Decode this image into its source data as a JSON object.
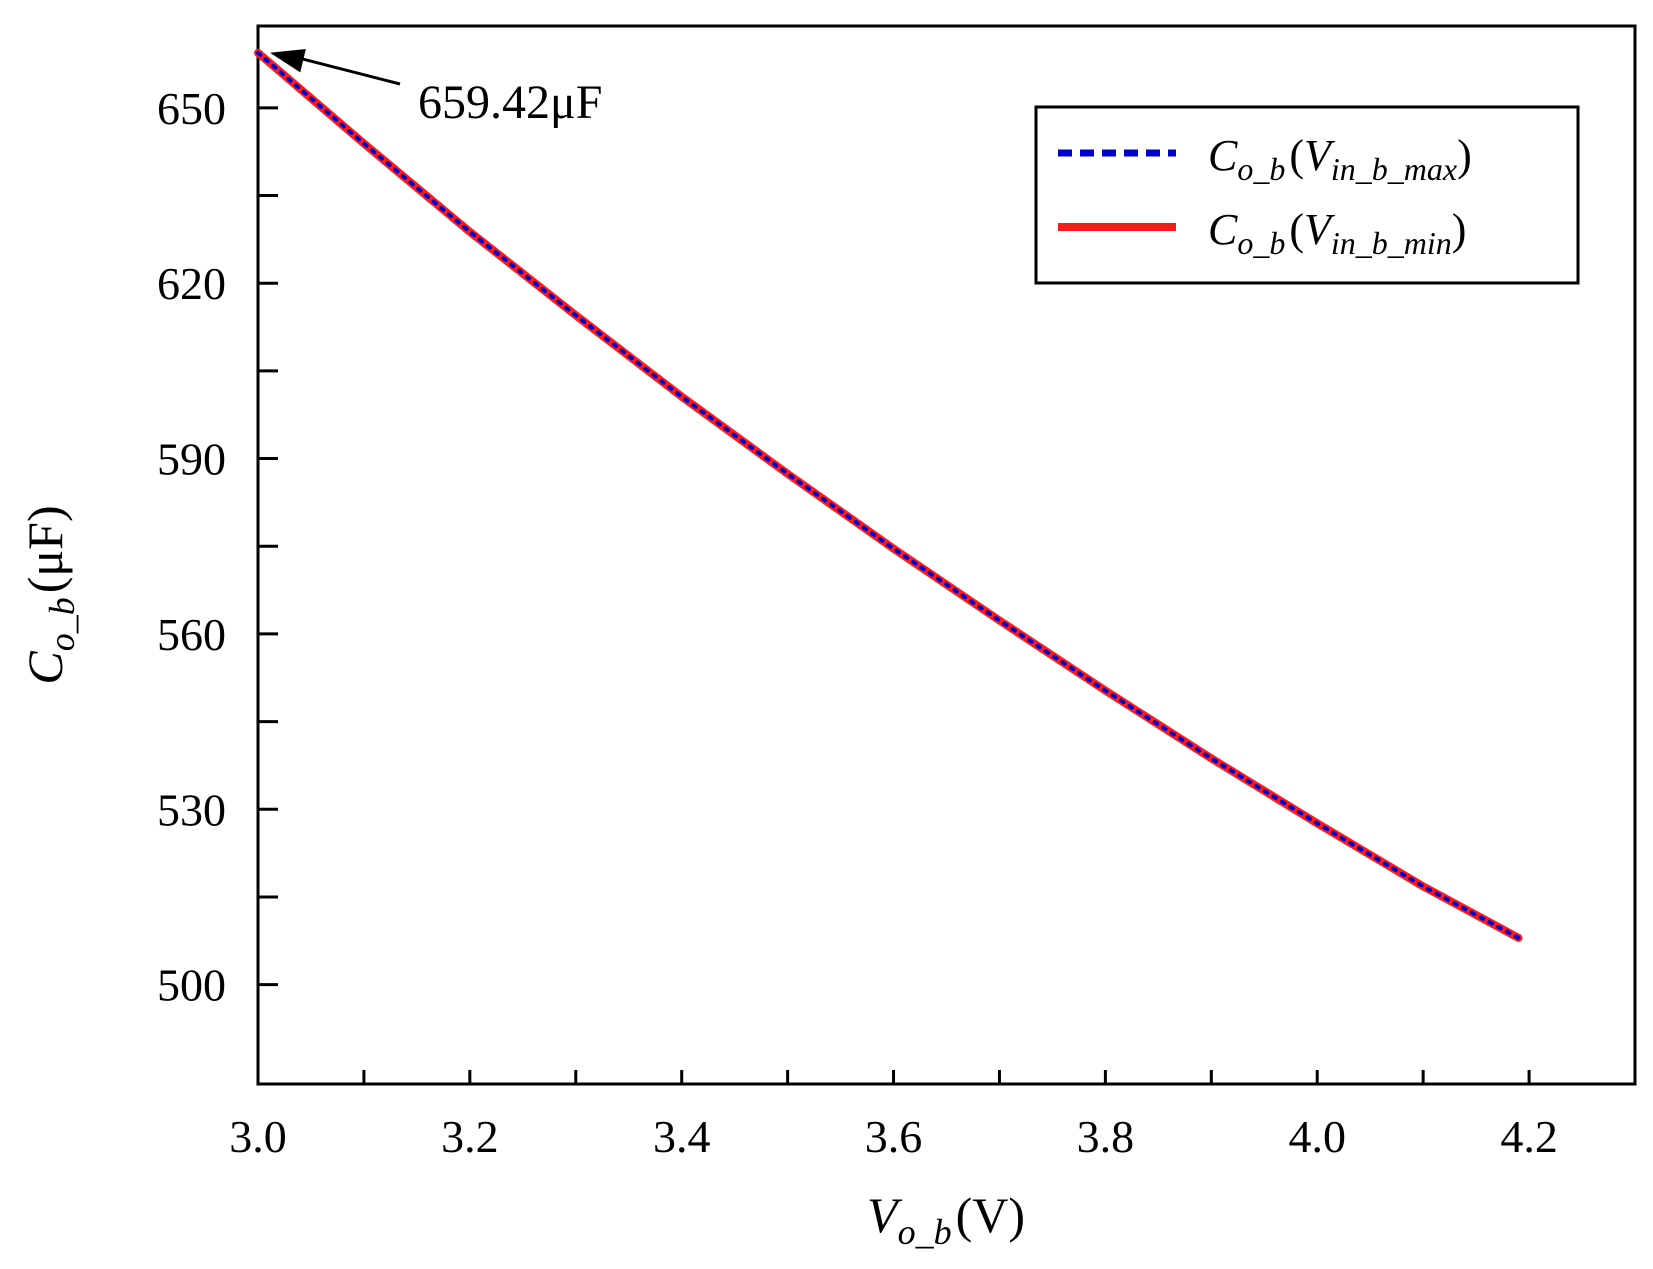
{
  "chart_data": {
    "type": "line",
    "title": "",
    "x_axis": {
      "label_main": "V",
      "label_sub": "o_b",
      "label_unit": "(V)",
      "range": [
        3.0,
        4.3
      ],
      "ticks": [
        3.0,
        3.2,
        3.4,
        3.6,
        3.8,
        4.0,
        4.2
      ],
      "tick_labels": [
        "3.0",
        "3.2",
        "3.4",
        "3.6",
        "3.8",
        "4.0",
        "4.2"
      ]
    },
    "y_axis": {
      "label_main": "C",
      "label_sub": "o_b",
      "label_unit": "(μF)",
      "range": [
        483,
        664
      ],
      "ticks": [
        500,
        530,
        560,
        590,
        620,
        650
      ],
      "tick_labels": [
        "500",
        "530",
        "560",
        "590",
        "620",
        "650"
      ]
    },
    "grid": false,
    "legend": {
      "position": "top-right"
    },
    "series": [
      {
        "name_main": "C",
        "name_sub": "o_b",
        "name_arg_main": "V",
        "name_arg_sub": "in_b_max",
        "color": "#0000cc",
        "style": "dotted",
        "x": [
          3.0,
          3.1,
          3.2,
          3.3,
          3.4,
          3.5,
          3.6,
          3.7,
          3.8,
          3.9,
          4.0,
          4.1,
          4.19
        ],
        "y": [
          659.42,
          643.9,
          628.8,
          614.5,
          600.6,
          587.4,
          574.6,
          562.3,
          550.3,
          538.7,
          527.6,
          516.8,
          508.0
        ]
      },
      {
        "name_main": "C",
        "name_sub": "o_b",
        "name_arg_main": "V",
        "name_arg_sub": "in_b_min",
        "color": "#ff1a1a",
        "style": "solid",
        "x": [
          3.0,
          3.1,
          3.2,
          3.3,
          3.4,
          3.5,
          3.6,
          3.7,
          3.8,
          3.9,
          4.0,
          4.1,
          4.19
        ],
        "y": [
          659.42,
          643.9,
          628.8,
          614.5,
          600.6,
          587.4,
          574.6,
          562.3,
          550.3,
          538.7,
          527.6,
          516.8,
          508.0
        ]
      }
    ],
    "annotation": {
      "text": "659.42μF",
      "x": 3.0,
      "y": 659.42
    }
  }
}
